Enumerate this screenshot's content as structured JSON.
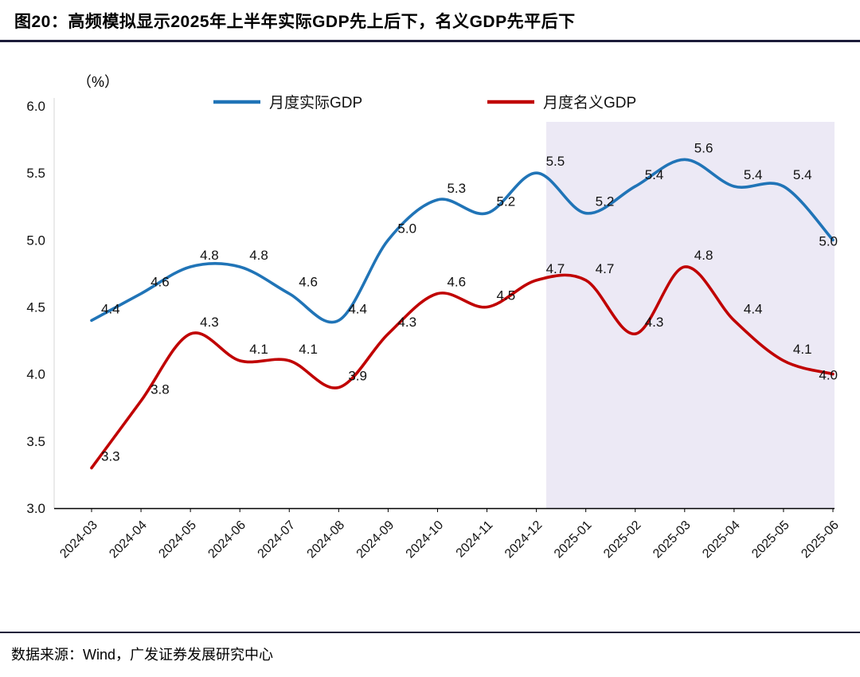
{
  "header": {
    "title": "图20：高频模拟显示2025年上半年实际GDP先上后下，名义GDP先平后下"
  },
  "footer": {
    "source": "数据来源：Wind，广发证券发展研究中心"
  },
  "chart_data": {
    "type": "line",
    "title": "高频模拟显示2025年上半年实际GDP先上后下，名义GDP先平后下",
    "ylabel": "（%）",
    "xlabel": "",
    "x": [
      "2024-03",
      "2024-04",
      "2024-05",
      "2024-06",
      "2024-07",
      "2024-08",
      "2024-09",
      "2024-10",
      "2024-11",
      "2024-12",
      "2025-01",
      "2025-02",
      "2025-03",
      "2025-04",
      "2025-05",
      "2025-06"
    ],
    "series": [
      {
        "name": "月度实际GDP",
        "color": "#2074B7",
        "values": [
          4.4,
          4.6,
          4.8,
          4.8,
          4.6,
          4.4,
          5.0,
          5.3,
          5.2,
          5.5,
          5.2,
          5.4,
          5.6,
          5.4,
          5.4,
          5.0
        ]
      },
      {
        "name": "月度名义GDP",
        "color": "#C00000",
        "values": [
          3.3,
          3.8,
          4.3,
          4.1,
          4.1,
          3.9,
          4.3,
          4.6,
          4.5,
          4.7,
          4.7,
          4.3,
          4.8,
          4.4,
          4.1,
          4.0
        ]
      }
    ],
    "ylim": [
      3.0,
      6.0
    ],
    "yticks": [
      "6.0",
      "5.5",
      "5.0",
      "4.5",
      "4.0",
      "3.5",
      "3.0"
    ],
    "grid": false,
    "legend_position": "top-center",
    "shaded_region": {
      "from": "2025-01",
      "to": "2025-06",
      "color": "#ECE9F5"
    }
  }
}
